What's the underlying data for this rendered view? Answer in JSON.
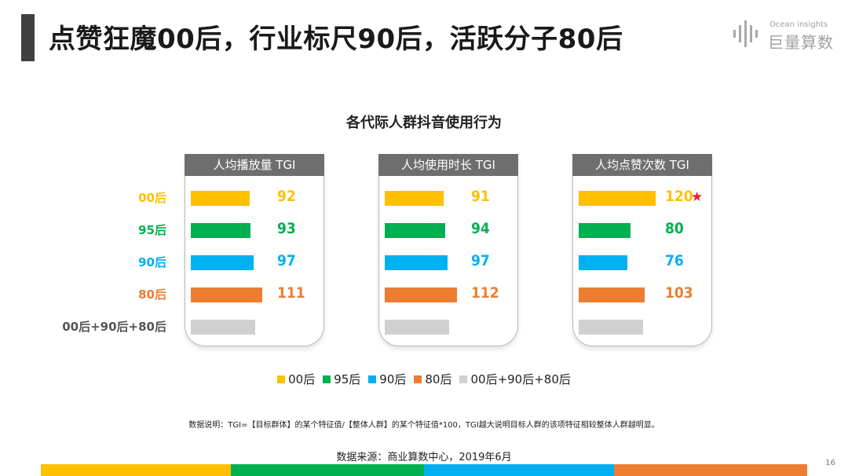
{
  "header": {
    "title": "点赞狂魔00后，行业标尺90后，活跃分子80后",
    "logo_en": "Ocean insights",
    "logo_cn": "巨量算数"
  },
  "chart_data": {
    "type": "bar",
    "title": "各代际人群抖音使用行为",
    "categories": [
      "00后",
      "95后",
      "90后",
      "80后",
      "00后+90后+80后"
    ],
    "category_colors": [
      "#FFC000",
      "#00B050",
      "#00B0F0",
      "#ED7D31",
      "#D0D0D0"
    ],
    "panels": [
      {
        "header": "人均播放量  TGI",
        "values": [
          92,
          93,
          97,
          111,
          100
        ],
        "labels": [
          "92",
          "93",
          "97",
          "111",
          ""
        ],
        "highlight": [
          false,
          false,
          false,
          false,
          false
        ]
      },
      {
        "header": "人均使用时长  TGI",
        "values": [
          91,
          94,
          97,
          112,
          100
        ],
        "labels": [
          "91",
          "94",
          "97",
          "112",
          ""
        ],
        "highlight": [
          false,
          false,
          false,
          false,
          false
        ]
      },
      {
        "header": "人均点赞次数 TGI",
        "values": [
          120,
          80,
          76,
          103,
          100
        ],
        "labels": [
          "120",
          "80",
          "76",
          "103",
          ""
        ],
        "highlight": [
          true,
          false,
          false,
          false,
          false
        ]
      }
    ],
    "star_symbol": "★",
    "legend": [
      "00后",
      "95后",
      "90后",
      "80后",
      "00后+90后+80后"
    ]
  },
  "footer": {
    "note": "数据说明：TGI=【目标群体】的某个特征值/【整体人群】的某个特征值*100，TGI越大说明目标人群的该项特征相较整体人群越明显。",
    "source": "数据来源：商业算数中心，2019年6月",
    "page_number": "16"
  }
}
